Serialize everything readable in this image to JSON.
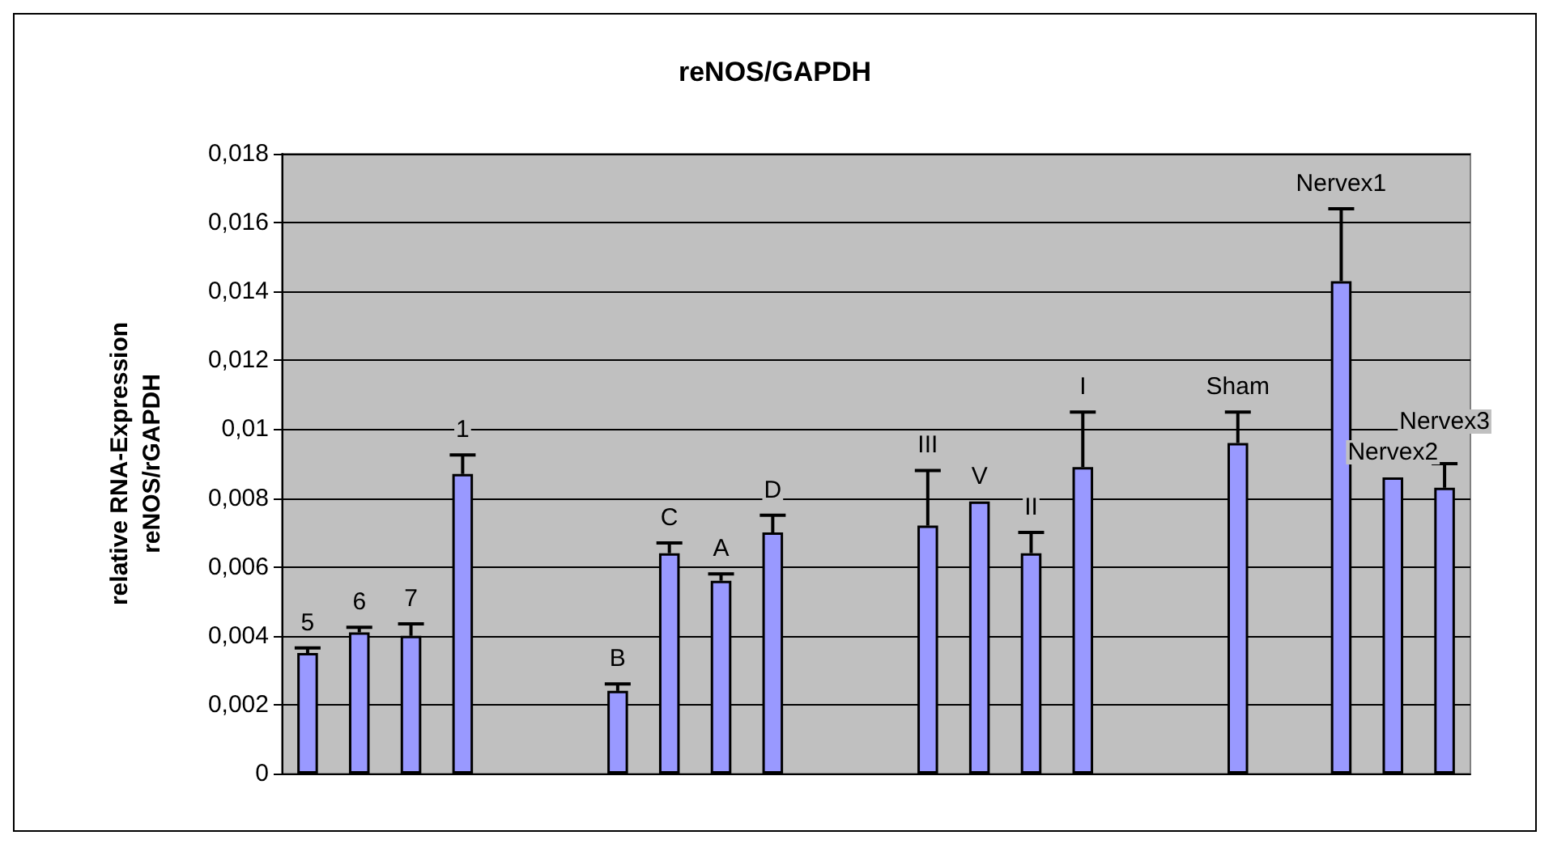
{
  "chart_data": {
    "type": "bar",
    "title": "reNOS/GAPDH",
    "ylabel": "relative RNA-Expression\nreNOS/rGAPDH",
    "categories": [
      "5",
      "6",
      "7",
      "1",
      null,
      null,
      "B",
      "C",
      "A",
      "D",
      null,
      null,
      "III",
      "V",
      "II",
      "I",
      null,
      null,
      "Sham",
      null,
      "Nervex1",
      "Nervex2",
      "Nervex3"
    ],
    "values": [
      0.0035,
      0.0041,
      0.004,
      0.0087,
      null,
      null,
      0.0024,
      0.0064,
      0.0056,
      0.007,
      null,
      null,
      0.0072,
      0.0079,
      0.0064,
      0.0089,
      null,
      null,
      0.0096,
      null,
      0.0143,
      0.0086,
      0.0083
    ],
    "errors": [
      0.00015,
      0.00015,
      0.00035,
      0.00055,
      null,
      null,
      0.0002,
      0.0003,
      0.0002,
      0.0005,
      null,
      null,
      0.0016,
      null,
      0.0006,
      0.0016,
      null,
      null,
      0.0009,
      null,
      0.0021,
      null,
      0.0007
    ],
    "color": "#9999ff",
    "ylim": [
      0,
      0.018
    ],
    "yticks": [
      0,
      {
        "value": 0.002,
        "label": "0,002"
      },
      {
        "value": 0.004,
        "label": "0,004"
      },
      {
        "value": 0.006,
        "label": "0,006"
      },
      {
        "value": 0.008,
        "label": "0,008"
      },
      {
        "value": 0.01,
        "label": "0,01"
      },
      {
        "value": 0.012,
        "label": "0,012"
      },
      {
        "value": 0.014,
        "label": "0,014"
      },
      {
        "value": 0.016,
        "label": "0,016"
      },
      {
        "value": 0.018,
        "label": "0,018"
      }
    ],
    "grid": "y",
    "tick_labels": "y"
  }
}
